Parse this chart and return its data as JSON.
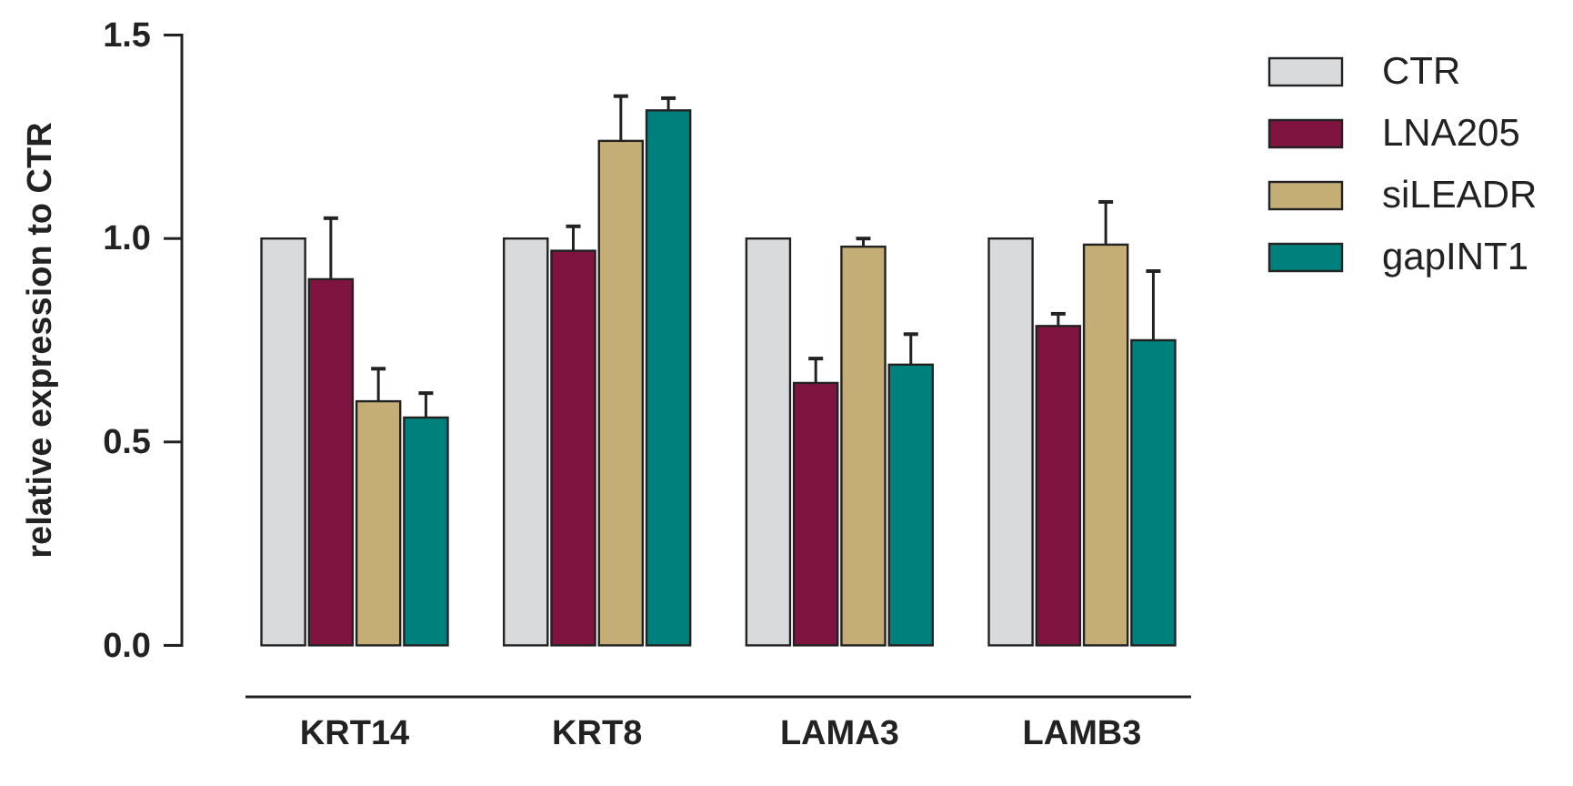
{
  "chart_data": {
    "type": "bar",
    "ylabel": "relative expression to CTR",
    "categories": [
      "KRT14",
      "KRT8",
      "LAMA3",
      "LAMB3"
    ],
    "series": [
      {
        "name": "CTR",
        "color": "#d9dadb",
        "values": [
          1,
          1,
          1,
          1
        ]
      },
      {
        "name": "LNA205",
        "color": "#7f1440",
        "values": [
          0.9,
          0.97,
          0.645,
          0.785
        ],
        "errors": [
          0.15,
          0.06,
          0.06,
          0.03
        ]
      },
      {
        "name": "siLEADR",
        "color": "#c4ae76",
        "values": [
          0.6,
          1.24,
          0.98,
          0.985
        ],
        "errors": [
          0.08,
          0.11,
          0.02,
          0.105
        ]
      },
      {
        "name": "gapINT1",
        "color": "#00807c",
        "values": [
          0.56,
          1.315,
          0.69,
          0.75
        ],
        "errors": [
          0.06,
          0.03,
          0.075,
          0.17
        ]
      }
    ],
    "ylim": [
      0,
      1.5
    ],
    "yticks": [
      {
        "value": 0,
        "label": "0.0"
      },
      {
        "value": 0.5,
        "label": "0.5"
      },
      {
        "value": 1,
        "label": "1.0"
      },
      {
        "value": 1.5,
        "label": "1.5"
      }
    ],
    "legend": "top right"
  }
}
